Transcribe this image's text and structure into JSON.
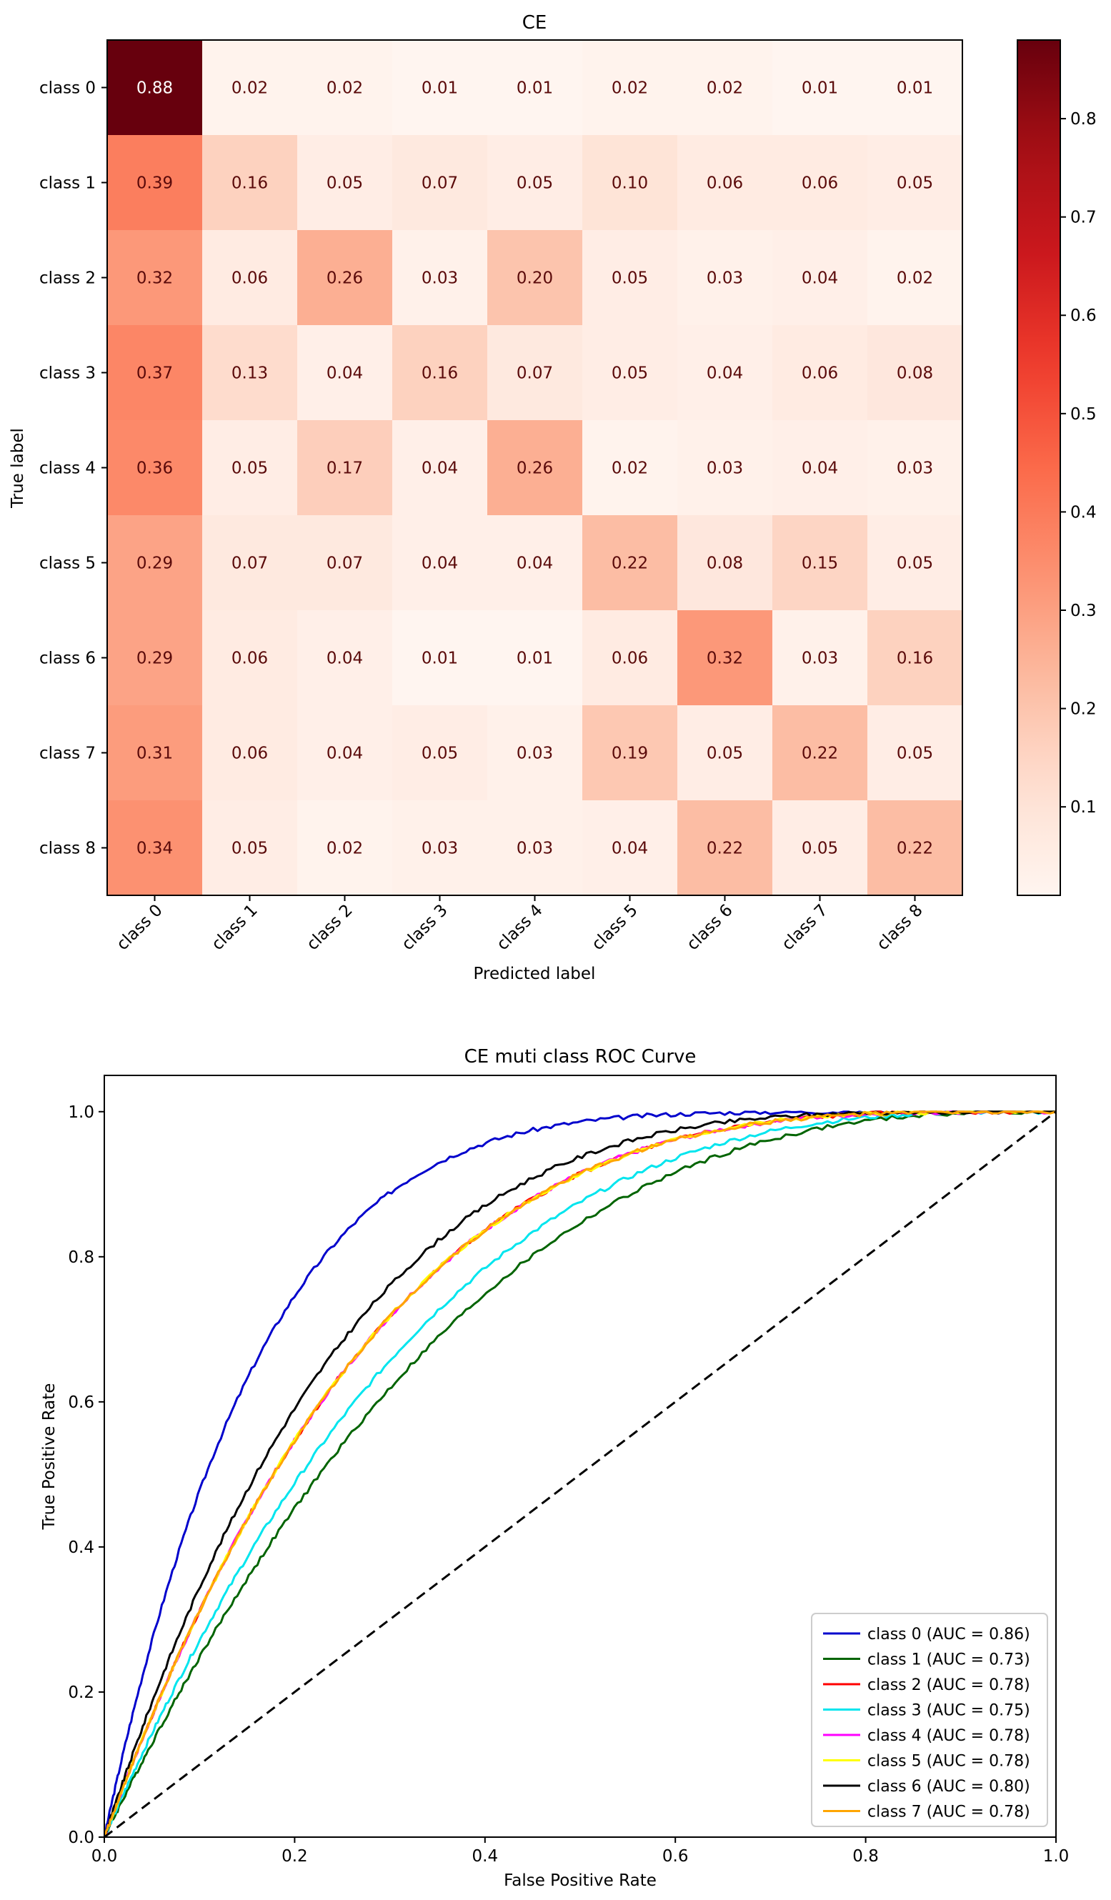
{
  "chart_data": [
    {
      "type": "heatmap",
      "title": "CE",
      "xlabel": "Predicted label",
      "ylabel": "True label",
      "x_categories": [
        "class 0",
        "class 1",
        "class 2",
        "class 3",
        "class 4",
        "class 5",
        "class 6",
        "class 7",
        "class 8"
      ],
      "y_categories": [
        "class 0",
        "class 1",
        "class 2",
        "class 3",
        "class 4",
        "class 5",
        "class 6",
        "class 7",
        "class 8"
      ],
      "values": [
        [
          "0.88",
          "0.02",
          "0.02",
          "0.01",
          "0.01",
          "0.02",
          "0.02",
          "0.01",
          "0.01"
        ],
        [
          "0.39",
          "0.16",
          "0.05",
          "0.07",
          "0.05",
          "0.10",
          "0.06",
          "0.06",
          "0.05"
        ],
        [
          "0.32",
          "0.06",
          "0.26",
          "0.03",
          "0.20",
          "0.05",
          "0.03",
          "0.04",
          "0.02"
        ],
        [
          "0.37",
          "0.13",
          "0.04",
          "0.16",
          "0.07",
          "0.05",
          "0.04",
          "0.06",
          "0.08"
        ],
        [
          "0.36",
          "0.05",
          "0.17",
          "0.04",
          "0.26",
          "0.02",
          "0.03",
          "0.04",
          "0.03"
        ],
        [
          "0.29",
          "0.07",
          "0.07",
          "0.04",
          "0.04",
          "0.22",
          "0.08",
          "0.15",
          "0.05"
        ],
        [
          "0.29",
          "0.06",
          "0.04",
          "0.01",
          "0.01",
          "0.06",
          "0.32",
          "0.03",
          "0.16"
        ],
        [
          "0.31",
          "0.06",
          "0.04",
          "0.05",
          "0.03",
          "0.19",
          "0.05",
          "0.22",
          "0.05"
        ],
        [
          "0.34",
          "0.05",
          "0.02",
          "0.03",
          "0.03",
          "0.04",
          "0.22",
          "0.05",
          "0.22"
        ]
      ],
      "colormap": "Reds",
      "colorbar": {
        "min": 0.01,
        "max": 0.88,
        "ticks": [
          "0.1",
          "0.2",
          "0.3",
          "0.4",
          "0.5",
          "0.6",
          "0.7",
          "0.8"
        ]
      }
    },
    {
      "type": "line",
      "title": "CE muti class ROC Curve",
      "xlabel": "False Positive Rate",
      "ylabel": "True Positive Rate",
      "xlim": [
        0,
        1
      ],
      "ylim": [
        0,
        1.05
      ],
      "xticks": [
        "0.0",
        "0.2",
        "0.4",
        "0.6",
        "0.8",
        "1.0"
      ],
      "yticks": [
        "0.0",
        "0.2",
        "0.4",
        "0.6",
        "0.8",
        "1.0"
      ],
      "legend_position": "lower-right",
      "grid": false,
      "series": [
        {
          "name": "class 0 (AUC = 0.86)",
          "color": "#0000cc",
          "auc": 0.86
        },
        {
          "name": "class 1 (AUC = 0.73)",
          "color": "#006400",
          "auc": 0.73
        },
        {
          "name": "class 2 (AUC = 0.78)",
          "color": "#ff0000",
          "auc": 0.78
        },
        {
          "name": "class 3 (AUC = 0.75)",
          "color": "#00e5ee",
          "auc": 0.75
        },
        {
          "name": "class 4 (AUC = 0.78)",
          "color": "#ff00ff",
          "auc": 0.78
        },
        {
          "name": "class 5 (AUC = 0.78)",
          "color": "#ffff00",
          "auc": 0.78
        },
        {
          "name": "class 6 (AUC = 0.80)",
          "color": "#000000",
          "auc": 0.8
        },
        {
          "name": "class 7 (AUC = 0.78)",
          "color": "#ffa500",
          "auc": 0.78
        }
      ],
      "reference_line": {
        "x": [
          0,
          1
        ],
        "y": [
          0,
          1
        ],
        "style": "dashed",
        "color": "#000000"
      }
    }
  ]
}
